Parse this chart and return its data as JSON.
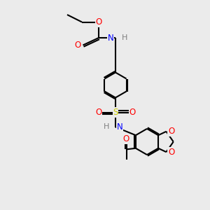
{
  "bg_color": "#ebebeb",
  "bond_color": "#000000",
  "bond_width": 1.5,
  "atom_colors": {
    "O": "#ff0000",
    "N": "#0000ff",
    "S": "#cccc00",
    "H": "#7f7f7f",
    "C": "#000000"
  },
  "font_size": 8.5,
  "figsize": [
    3.0,
    3.0
  ],
  "dpi": 100
}
